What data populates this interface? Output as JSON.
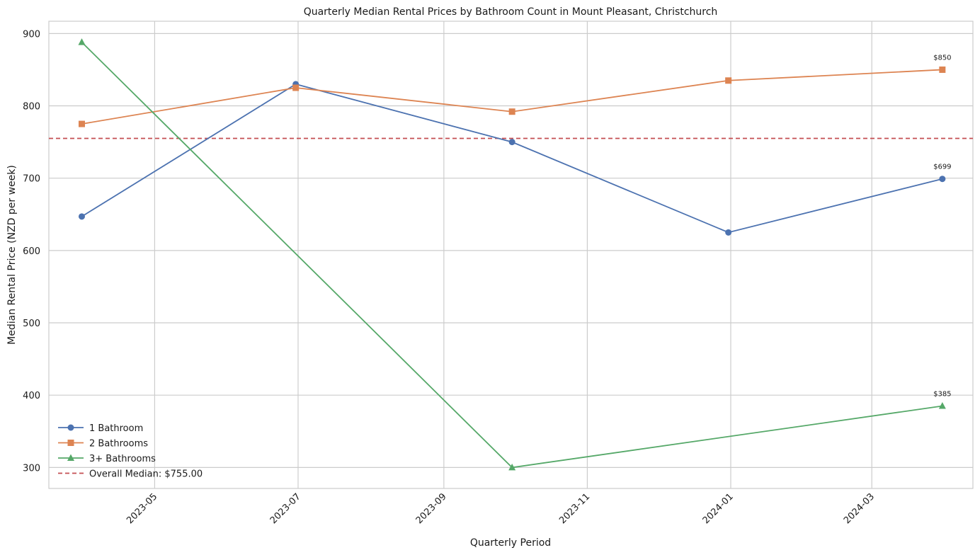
{
  "chart_data": {
    "type": "line",
    "title": "Quarterly Median Rental Prices by Bathroom Count in Mount Pleasant, Christchurch",
    "xlabel": "Quarterly Period",
    "ylabel": "Median Rental Price (NZD per week)",
    "x": [
      "2023-03-31",
      "2023-06-30",
      "2023-09-30",
      "2023-12-31",
      "2024-03-31"
    ],
    "xlim": [
      "2023-03-17",
      "2024-04-13"
    ],
    "ylim": [
      271,
      917
    ],
    "yticks": [
      300,
      400,
      500,
      600,
      700,
      800,
      900
    ],
    "xticks": [
      "2023-05",
      "2023-07",
      "2023-09",
      "2023-11",
      "2024-01",
      "2024-03"
    ],
    "grid": true,
    "legend_position": "lower-left",
    "series": [
      {
        "name": "1 Bathroom",
        "marker": "circle",
        "color": "#4c72b0",
        "values": [
          647,
          830,
          750,
          625,
          699
        ]
      },
      {
        "name": "2 Bathrooms",
        "marker": "square",
        "color": "#dd8452",
        "values": [
          775,
          825,
          792,
          835,
          850
        ]
      },
      {
        "name": "3+ Bathrooms",
        "marker": "triangle",
        "color": "#55a868",
        "values": [
          888,
          null,
          300,
          null,
          385
        ]
      }
    ],
    "reference_line": {
      "label": "Overall Median: $755.00",
      "value": 755,
      "color": "#c44e52",
      "style": "dashed"
    },
    "annotations": [
      {
        "series": 0,
        "text": "$699"
      },
      {
        "series": 1,
        "text": "$850"
      },
      {
        "series": 2,
        "text": "$385"
      }
    ]
  }
}
